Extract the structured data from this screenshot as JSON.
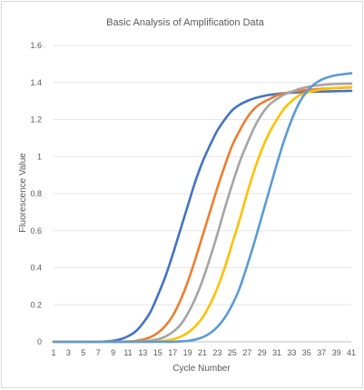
{
  "chart_data": {
    "type": "line",
    "title": "Basic Analysis of Amplification Data",
    "xlabel": "Cycle Number",
    "ylabel": "Fluorescence Value",
    "x": [
      1,
      2,
      3,
      4,
      5,
      6,
      7,
      8,
      9,
      10,
      11,
      12,
      13,
      14,
      15,
      16,
      17,
      18,
      19,
      20,
      21,
      22,
      23,
      24,
      25,
      26,
      27,
      28,
      29,
      30,
      31,
      32,
      33,
      34,
      35,
      36,
      37,
      38,
      39,
      40,
      41
    ],
    "x_tick_labels": [
      "1",
      "3",
      "5",
      "7",
      "9",
      "11",
      "13",
      "15",
      "17",
      "19",
      "21",
      "23",
      "25",
      "27",
      "29",
      "31",
      "33",
      "35",
      "37",
      "39",
      "41"
    ],
    "y_tick_labels": [
      "0",
      "0.2",
      "0.4",
      "0.6",
      "0.8",
      "1",
      "1.2",
      "1.4",
      "1.6"
    ],
    "xlim": [
      1,
      41
    ],
    "ylim": [
      0,
      1.6
    ],
    "grid": "horizontal",
    "legend": "none",
    "series": [
      {
        "color": "#4472c4",
        "values": [
          0,
          0,
          0,
          0,
          0,
          0,
          0,
          0.002,
          0.006,
          0.014,
          0.03,
          0.055,
          0.1,
          0.16,
          0.25,
          0.35,
          0.47,
          0.6,
          0.73,
          0.86,
          0.97,
          1.06,
          1.14,
          1.2,
          1.25,
          1.28,
          1.3,
          1.315,
          1.325,
          1.333,
          1.338,
          1.342,
          1.345,
          1.347,
          1.349,
          1.35,
          1.351,
          1.352,
          1.353,
          1.354,
          1.355
        ]
      },
      {
        "color": "#ed7d31",
        "values": [
          0,
          0,
          0,
          0,
          0,
          0,
          0,
          0,
          0,
          0,
          0.002,
          0.005,
          0.012,
          0.025,
          0.048,
          0.085,
          0.14,
          0.22,
          0.32,
          0.44,
          0.57,
          0.7,
          0.83,
          0.95,
          1.06,
          1.14,
          1.21,
          1.26,
          1.29,
          1.31,
          1.33,
          1.34,
          1.35,
          1.355,
          1.36,
          1.363,
          1.366,
          1.368,
          1.37,
          1.372,
          1.374
        ]
      },
      {
        "color": "#a5a5a5",
        "values": [
          0,
          0,
          0,
          0,
          0,
          0,
          0,
          0,
          0,
          0,
          0,
          0,
          0.002,
          0.006,
          0.014,
          0.028,
          0.052,
          0.09,
          0.15,
          0.23,
          0.33,
          0.45,
          0.58,
          0.72,
          0.85,
          0.97,
          1.07,
          1.16,
          1.23,
          1.28,
          1.31,
          1.335,
          1.35,
          1.365,
          1.375,
          1.382,
          1.387,
          1.39,
          1.392,
          1.393,
          1.394
        ]
      },
      {
        "color": "#ffc000",
        "values": [
          0,
          0,
          0,
          0,
          0,
          0,
          0,
          0,
          0,
          0,
          0,
          0,
          0,
          0,
          0.002,
          0.006,
          0.013,
          0.026,
          0.048,
          0.082,
          0.13,
          0.2,
          0.29,
          0.4,
          0.53,
          0.66,
          0.8,
          0.93,
          1.04,
          1.13,
          1.2,
          1.26,
          1.3,
          1.33,
          1.345,
          1.355,
          1.362,
          1.367,
          1.37,
          1.373,
          1.375
        ]
      },
      {
        "color": "#5b9bd5",
        "values": [
          0,
          0,
          0,
          0,
          0,
          0,
          0,
          0,
          0,
          0,
          0,
          0,
          0,
          0,
          0,
          0,
          0,
          0.002,
          0.005,
          0.012,
          0.024,
          0.046,
          0.08,
          0.13,
          0.2,
          0.29,
          0.41,
          0.54,
          0.68,
          0.82,
          0.96,
          1.09,
          1.2,
          1.29,
          1.35,
          1.39,
          1.415,
          1.43,
          1.44,
          1.445,
          1.45
        ]
      }
    ]
  }
}
